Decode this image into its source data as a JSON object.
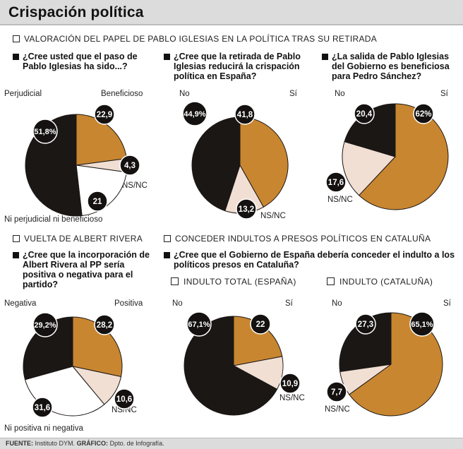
{
  "title": "Crispación política",
  "sections": [
    "VALORACIÓN DEL PAPEL DE PABLO IGLESIAS EN LA POLÍTICA TRAS SU RETIRADA",
    "VUELTA DE ALBERT RIVERA",
    "CONCEDER INDULTOS A PRESOS POLÍTICOS EN CATALUÑA"
  ],
  "questions": [
    "¿Cree usted que el paso de Pablo Iglesias ha sido...?",
    "¿Cree que la retirada de Pablo Iglesias reducirá la crispación política en España?",
    "¿La salida de Pablo Iglesias del Gobierno es beneficiosa para Pedro Sánchez?",
    "¿Cree que la incorporación de Albert Rivera al PP sería positiva o negativa para el partido?",
    "¿Cree que el Gobierno de España debería conceder el indulto a los políticos presos en Cataluña?"
  ],
  "subheads": [
    "INDULTO TOTAL (ESPAÑA)",
    "INDULTO (CATALUÑA)"
  ],
  "colors": {
    "black": "#1b1715",
    "orange": "#c98630",
    "pink": "#f1dfd3",
    "white": "#ffffff"
  },
  "chart_data": [
    {
      "type": "pie",
      "slices": [
        {
          "label": "Perjudicial",
          "value": 51.8,
          "value_label": "51,8%"
        },
        {
          "label": "Beneficioso",
          "value": 22.9,
          "value_label": "22,9"
        },
        {
          "label": "NS/NC",
          "value": 4.3,
          "value_label": "4,3"
        },
        {
          "label": "Ni perjudicial ni beneficioso",
          "value": 21,
          "value_label": "21"
        }
      ]
    },
    {
      "type": "pie",
      "slices": [
        {
          "label": "No",
          "value": 44.9,
          "value_label": "44,9%"
        },
        {
          "label": "Sí",
          "value": 41.8,
          "value_label": "41,8"
        },
        {
          "label": "NS/NC",
          "value": 13.2,
          "value_label": "13,2"
        }
      ]
    },
    {
      "type": "pie",
      "slices": [
        {
          "label": "No",
          "value": 20.4,
          "value_label": "20,4"
        },
        {
          "label": "Sí",
          "value": 62,
          "value_label": "62%"
        },
        {
          "label": "NS/NC",
          "value": 17.6,
          "value_label": "17,6"
        }
      ]
    },
    {
      "type": "pie",
      "slices": [
        {
          "label": "Negativa",
          "value": 29.2,
          "value_label": "29,2%"
        },
        {
          "label": "Positiva",
          "value": 28.2,
          "value_label": "28,2"
        },
        {
          "label": "NS/NC",
          "value": 10.6,
          "value_label": "10,6"
        },
        {
          "label": "Ni positiva ni negativa",
          "value": 31.6,
          "value_label": "31,6"
        }
      ]
    },
    {
      "type": "pie",
      "subtitle": "INDULTO TOTAL (ESPAÑA)",
      "slices": [
        {
          "label": "No",
          "value": 67.1,
          "value_label": "67,1%"
        },
        {
          "label": "Sí",
          "value": 22,
          "value_label": "22"
        },
        {
          "label": "NS/NC",
          "value": 10.9,
          "value_label": "10,9"
        }
      ]
    },
    {
      "type": "pie",
      "subtitle": "INDULTO (CATALUÑA)",
      "slices": [
        {
          "label": "No",
          "value": 27.3,
          "value_label": "27,3"
        },
        {
          "label": "Sí",
          "value": 65.1,
          "value_label": "65,1%"
        },
        {
          "label": "NS/NC",
          "value": 7.7,
          "value_label": "7,7"
        }
      ]
    }
  ],
  "footer": {
    "fuente_label": "FUENTE:",
    "fuente": "Instituto DYM.",
    "grafico_label": "GRÁFICO:",
    "grafico": "Dpto. de Infografía."
  }
}
